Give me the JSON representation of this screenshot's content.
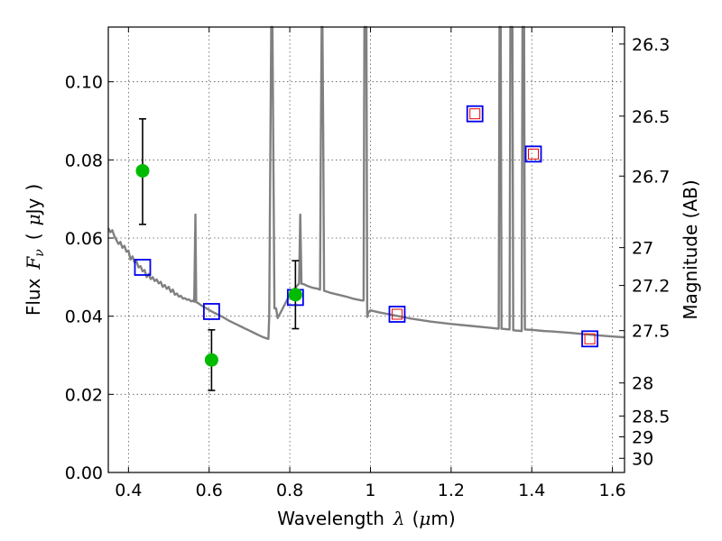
{
  "chart_data": {
    "type": "scatter",
    "title": "",
    "xlabel": "Wavelength",
    "xlabel_symbol": "λ",
    "xlabel_unit_prefix": "(",
    "xlabel_unit_mu": "μ",
    "xlabel_unit_rest": "m)",
    "ylabel_prefix": "Flux",
    "ylabel_symbol": "F",
    "ylabel_subscript": "ν",
    "ylabel_unit_open": "(",
    "ylabel_unit_mu": "μ",
    "ylabel_unit_rest": "Jy",
    "ylabel_unit_close": ")",
    "y2label": "Magnitude (AB)",
    "xlim": [
      0.35,
      1.63
    ],
    "ylim": [
      0.0,
      0.114
    ],
    "grid": true,
    "x_ticks": [
      0.4,
      0.6,
      0.8,
      1.0,
      1.2,
      1.4,
      1.6
    ],
    "x_tick_labels": [
      "0.4",
      "0.6",
      "0.8",
      "1",
      "1.2",
      "1.4",
      "1.6"
    ],
    "y_ticks": [
      0.0,
      0.02,
      0.04,
      0.06,
      0.08,
      0.1
    ],
    "y_tick_labels": [
      "0.00",
      "0.02",
      "0.04",
      "0.06",
      "0.08",
      "0.10"
    ],
    "mag_ticks": [
      {
        "label": "26.3",
        "mag": 26.3
      },
      {
        "label": "26.5",
        "mag": 26.5
      },
      {
        "label": "26.7",
        "mag": 26.7
      },
      {
        "label": "27",
        "mag": 27.0
      },
      {
        "label": "27.2",
        "mag": 27.2
      },
      {
        "label": "27.5",
        "mag": 27.5
      },
      {
        "label": "28",
        "mag": 28.0
      },
      {
        "label": "28.5",
        "mag": 28.5
      },
      {
        "label": "29",
        "mag": 29.0
      },
      {
        "label": "30",
        "mag": 30.0
      }
    ],
    "colors": {
      "model": "#808080",
      "observed": "#00bb00",
      "errorbar": "#000000",
      "model_band": "#0000ee",
      "upper_limit": "#ee0000",
      "grid": "#555555"
    },
    "model_spectrum": [
      [
        0.35,
        0.0625
      ],
      [
        0.355,
        0.0615
      ],
      [
        0.36,
        0.062
      ],
      [
        0.365,
        0.0605
      ],
      [
        0.37,
        0.0595
      ],
      [
        0.375,
        0.0585
      ],
      [
        0.38,
        0.059
      ],
      [
        0.385,
        0.0575
      ],
      [
        0.39,
        0.058
      ],
      [
        0.395,
        0.0565
      ],
      [
        0.4,
        0.0568
      ],
      [
        0.405,
        0.0545
      ],
      [
        0.41,
        0.0553
      ],
      [
        0.415,
        0.0538
      ],
      [
        0.42,
        0.054
      ],
      [
        0.425,
        0.0525
      ],
      [
        0.43,
        0.0528
      ],
      [
        0.435,
        0.0515
      ],
      [
        0.44,
        0.0518
      ],
      [
        0.445,
        0.05
      ],
      [
        0.45,
        0.0508
      ],
      [
        0.455,
        0.0495
      ],
      [
        0.46,
        0.05
      ],
      [
        0.465,
        0.049
      ],
      [
        0.47,
        0.0494
      ],
      [
        0.475,
        0.0484
      ],
      [
        0.48,
        0.0488
      ],
      [
        0.485,
        0.0475
      ],
      [
        0.49,
        0.048
      ],
      [
        0.495,
        0.047
      ],
      [
        0.5,
        0.0475
      ],
      [
        0.505,
        0.0462
      ],
      [
        0.51,
        0.0468
      ],
      [
        0.515,
        0.0455
      ],
      [
        0.52,
        0.0458
      ],
      [
        0.525,
        0.045
      ],
      [
        0.53,
        0.0452
      ],
      [
        0.535,
        0.0445
      ],
      [
        0.54,
        0.0446
      ],
      [
        0.545,
        0.0442
      ],
      [
        0.55,
        0.0443
      ],
      [
        0.555,
        0.0438
      ],
      [
        0.56,
        0.044
      ],
      [
        0.563,
        0.0437
      ],
      [
        0.566,
        0.066
      ],
      [
        0.568,
        0.0436
      ],
      [
        0.575,
        0.0432
      ],
      [
        0.58,
        0.0428
      ],
      [
        0.59,
        0.0422
      ],
      [
        0.6,
        0.0416
      ],
      [
        0.61,
        0.041
      ],
      [
        0.62,
        0.0405
      ],
      [
        0.63,
        0.04
      ],
      [
        0.64,
        0.0394
      ],
      [
        0.65,
        0.0388
      ],
      [
        0.66,
        0.0383
      ],
      [
        0.67,
        0.0378
      ],
      [
        0.68,
        0.0373
      ],
      [
        0.69,
        0.0368
      ],
      [
        0.7,
        0.0363
      ],
      [
        0.71,
        0.0358
      ],
      [
        0.72,
        0.0353
      ],
      [
        0.73,
        0.0348
      ],
      [
        0.74,
        0.0344
      ],
      [
        0.747,
        0.0342
      ],
      [
        0.749,
        0.04
      ],
      [
        0.752,
        0.085
      ],
      [
        0.754,
        0.114
      ],
      [
        0.757,
        0.114
      ],
      [
        0.759,
        0.085
      ],
      [
        0.762,
        0.042
      ],
      [
        0.766,
        0.042
      ],
      [
        0.77,
        0.0395
      ],
      [
        0.775,
        0.0405
      ],
      [
        0.78,
        0.0415
      ],
      [
        0.785,
        0.0425
      ],
      [
        0.79,
        0.0435
      ],
      [
        0.795,
        0.0445
      ],
      [
        0.8,
        0.0455
      ],
      [
        0.805,
        0.0462
      ],
      [
        0.81,
        0.0468
      ],
      [
        0.815,
        0.0474
      ],
      [
        0.82,
        0.048
      ],
      [
        0.823,
        0.0483
      ],
      [
        0.826,
        0.066
      ],
      [
        0.829,
        0.0483
      ],
      [
        0.835,
        0.0482
      ],
      [
        0.84,
        0.0479
      ],
      [
        0.85,
        0.0475
      ],
      [
        0.86,
        0.0472
      ],
      [
        0.87,
        0.047
      ],
      [
        0.875,
        0.0468
      ],
      [
        0.877,
        0.085
      ],
      [
        0.879,
        0.114
      ],
      [
        0.881,
        0.114
      ],
      [
        0.883,
        0.085
      ],
      [
        0.885,
        0.0465
      ],
      [
        0.9,
        0.046
      ],
      [
        0.92,
        0.0455
      ],
      [
        0.94,
        0.045
      ],
      [
        0.96,
        0.0444
      ],
      [
        0.98,
        0.044
      ],
      [
        0.983,
        0.044
      ],
      [
        0.985,
        0.114
      ],
      [
        0.99,
        0.114
      ],
      [
        0.992,
        0.0398
      ],
      [
        0.995,
        0.041
      ],
      [
        1.0,
        0.0415
      ],
      [
        1.02,
        0.041
      ],
      [
        1.05,
        0.0404
      ],
      [
        1.08,
        0.0398
      ],
      [
        1.1,
        0.0394
      ],
      [
        1.15,
        0.0386
      ],
      [
        1.2,
        0.038
      ],
      [
        1.25,
        0.0375
      ],
      [
        1.3,
        0.037
      ],
      [
        1.318,
        0.0368
      ],
      [
        1.32,
        0.114
      ],
      [
        1.323,
        0.114
      ],
      [
        1.325,
        0.0368
      ],
      [
        1.345,
        0.0366
      ],
      [
        1.347,
        0.114
      ],
      [
        1.352,
        0.114
      ],
      [
        1.354,
        0.0364
      ],
      [
        1.375,
        0.0362
      ],
      [
        1.377,
        0.114
      ],
      [
        1.381,
        0.114
      ],
      [
        1.383,
        0.0366
      ],
      [
        1.4,
        0.0365
      ],
      [
        1.43,
        0.0362
      ],
      [
        1.45,
        0.0361
      ],
      [
        1.5,
        0.0357
      ],
      [
        1.55,
        0.0352
      ],
      [
        1.6,
        0.0348
      ],
      [
        1.63,
        0.0346
      ]
    ],
    "observed_points": [
      {
        "x": 0.435,
        "y": 0.0772,
        "err_low": 0.0635,
        "err_high": 0.0905
      },
      {
        "x": 0.606,
        "y": 0.0288,
        "err_low": 0.021,
        "err_high": 0.0365
      },
      {
        "x": 0.814,
        "y": 0.0455,
        "err_low": 0.0368,
        "err_high": 0.0542
      }
    ],
    "model_band_points": [
      {
        "x": 0.435,
        "y": 0.0525
      },
      {
        "x": 0.606,
        "y": 0.0412
      },
      {
        "x": 0.814,
        "y": 0.0448
      },
      {
        "x": 1.066,
        "y": 0.0405
      },
      {
        "x": 1.259,
        "y": 0.0918
      },
      {
        "x": 1.404,
        "y": 0.0815
      },
      {
        "x": 1.544,
        "y": 0.0342
      }
    ],
    "upper_limit_points": [
      {
        "x": 1.066,
        "y": 0.0405
      },
      {
        "x": 1.259,
        "y": 0.0918
      },
      {
        "x": 1.404,
        "y": 0.0815
      },
      {
        "x": 1.544,
        "y": 0.0342
      }
    ]
  }
}
